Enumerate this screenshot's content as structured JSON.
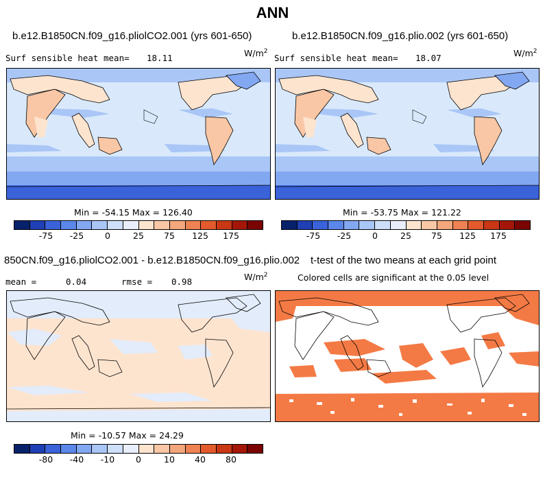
{
  "title": "ANN",
  "panels": {
    "p1": {
      "title": "b.e12.B1850CN.f09_g16.pliolCO2.001 (yrs 601-650)",
      "variable": "Surf sensible heat",
      "mean_label": "mean=",
      "mean_value": "18.11",
      "units_base": "W/m",
      "units_exp": "2",
      "minmax": "Min = -54.15 Max = 126.40"
    },
    "p2": {
      "title": "b.e12.B1850CN.f09_g16.plio.002 (yrs 601-650)",
      "variable": "Surf sensible heat",
      "mean_label": "mean=",
      "mean_value": "18.07",
      "units_base": "W/m",
      "units_exp": "2",
      "minmax": "Min = -53.75 Max = 121.22"
    },
    "p3": {
      "title": "850CN.f09_g16.pliolCO2.001 - b.e12.B1850CN.f09_g16.plio.002",
      "mean_label": "mean =",
      "mean_value": "0.04",
      "rmse_label": "rmse =",
      "rmse_value": "0.98",
      "units_base": "W/m",
      "units_exp": "2",
      "minmax": "Min = -10.57 Max = 24.29"
    },
    "p4": {
      "title": "t-test of the two means at each grid point",
      "subtitle": "Colored cells are significant at the 0.05 level"
    }
  },
  "colorbars": {
    "colors": [
      "#08216b",
      "#1f3fb4",
      "#3a62d9",
      "#5b86ea",
      "#83a8f2",
      "#a9c6f7",
      "#cddff9",
      "#e8eefa",
      "#fde4cf",
      "#f9c7a5",
      "#f4a67c",
      "#ee8252",
      "#e35b2c",
      "#c93714",
      "#a41708",
      "#7a0403"
    ],
    "abs_ticks": [
      "-75",
      "-25",
      "0",
      "25",
      "75",
      "125",
      "175"
    ],
    "diff_ticks": [
      "-80",
      "-40",
      "-10",
      "0",
      "10",
      "40",
      "80"
    ]
  },
  "legend_colors": {
    "ocean_cool": "#a9c6f7",
    "ocean_mid": "#cddff9",
    "land_warm": "#f9c7a5",
    "antarctic": "#3a62d9",
    "significant": "#f47a45"
  }
}
